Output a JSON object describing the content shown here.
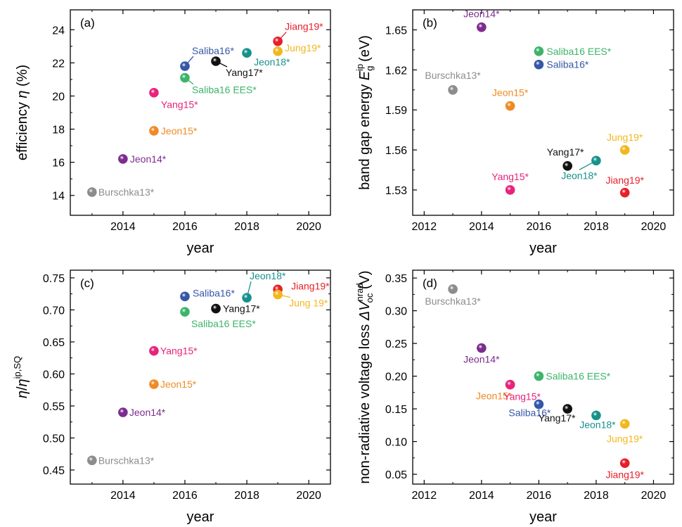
{
  "colors": {
    "Burschka13*": "#8c8c8c",
    "Jeon14*": "#7b2d8e",
    "Jeon15*": "#f08a24",
    "Yang15*": "#e8237c",
    "Saliba16*": "#3557a8",
    "Saliba16 EES*": "#3cb46a",
    "Yang17*": "#111111",
    "Jeon18*": "#17918c",
    "Jiang19*": "#e5202a",
    "Jung19*": "#f2b71e"
  },
  "chart_data": [
    {
      "id": "a",
      "type": "scatter",
      "panel_label": "(a)",
      "xlabel": "year",
      "ylabel": "efficiency η (%)",
      "xlim": [
        2012.3,
        2020.7
      ],
      "ylim": [
        12.8,
        25.2
      ],
      "xticks": [
        "2014",
        "2016",
        "2018",
        "2020"
      ],
      "yticks": [
        "14",
        "16",
        "18",
        "20",
        "22",
        "24"
      ],
      "points": [
        {
          "name": "Burschka13*",
          "x": 2013,
          "y": 14.2,
          "label": "Burschka13*"
        },
        {
          "name": "Jeon14*",
          "x": 2014,
          "y": 16.2,
          "label": "Jeon14*"
        },
        {
          "name": "Jeon15*",
          "x": 2015,
          "y": 17.9,
          "label": "Jeon15*"
        },
        {
          "name": "Yang15*",
          "x": 2015,
          "y": 20.2,
          "label": "Yang15*"
        },
        {
          "name": "Saliba16*",
          "x": 2016,
          "y": 21.8,
          "label": "Saliba16*"
        },
        {
          "name": "Saliba16 EES*",
          "x": 2016,
          "y": 21.1,
          "label": "Saliba16 EES*"
        },
        {
          "name": "Yang17*",
          "x": 2017,
          "y": 22.1,
          "label": "Yang17*"
        },
        {
          "name": "Jeon18*",
          "x": 2018,
          "y": 22.6,
          "label": "Jeon18*"
        },
        {
          "name": "Jiang19*",
          "x": 2019,
          "y": 23.3,
          "label": "Jiang19*"
        },
        {
          "name": "Jung19*",
          "x": 2019,
          "y": 22.7,
          "label": "Jung19*"
        }
      ]
    },
    {
      "id": "b",
      "type": "scatter",
      "panel_label": "(b)",
      "xlabel": "year",
      "ylabel": "band gap energy E_g^ip (eV)",
      "xlim": [
        2011.6,
        2020.7
      ],
      "ylim": [
        1.511,
        1.665
      ],
      "xticks": [
        "2012",
        "2014",
        "2016",
        "2018",
        "2020"
      ],
      "yticks": [
        "1.53",
        "1.56",
        "1.59",
        "1.62",
        "1.65"
      ],
      "points": [
        {
          "name": "Burschka13*",
          "x": 2013,
          "y": 1.605,
          "label": "Burschka13*"
        },
        {
          "name": "Jeon14*",
          "x": 2014,
          "y": 1.652,
          "label": "Jeon14*"
        },
        {
          "name": "Jeon15*",
          "x": 2015,
          "y": 1.593,
          "label": "Jeon15*"
        },
        {
          "name": "Yang15*",
          "x": 2015,
          "y": 1.53,
          "label": "Yang15*"
        },
        {
          "name": "Saliba16 EES*",
          "x": 2016,
          "y": 1.634,
          "label": "Saliba16 EES*"
        },
        {
          "name": "Saliba16*",
          "x": 2016,
          "y": 1.624,
          "label": "Saliba16*"
        },
        {
          "name": "Yang17*",
          "x": 2017,
          "y": 1.548,
          "label": "Yang17*"
        },
        {
          "name": "Jeon18*",
          "x": 2018,
          "y": 1.552,
          "label": "Jeon18*"
        },
        {
          "name": "Jiang19*",
          "x": 2019,
          "y": 1.528,
          "label": "Jiang19*"
        },
        {
          "name": "Jung19*",
          "x": 2019,
          "y": 1.56,
          "label": "Jung19*"
        }
      ]
    },
    {
      "id": "c",
      "type": "scatter",
      "panel_label": "(c)",
      "xlabel": "year",
      "ylabel": "η/η^ip,SQ",
      "xlim": [
        2012.3,
        2020.7
      ],
      "ylim": [
        0.428,
        0.762
      ],
      "xticks": [
        "2014",
        "2016",
        "2018",
        "2020"
      ],
      "yticks": [
        "0.45",
        "0.50",
        "0.55",
        "0.60",
        "0.65",
        "0.70",
        "0.75"
      ],
      "points": [
        {
          "name": "Burschka13*",
          "x": 2013,
          "y": 0.465,
          "label": "Burschka13*"
        },
        {
          "name": "Jeon14*",
          "x": 2014,
          "y": 0.54,
          "label": "Jeon14*"
        },
        {
          "name": "Jeon15*",
          "x": 2015,
          "y": 0.584,
          "label": "Jeon15*"
        },
        {
          "name": "Yang15*",
          "x": 2015,
          "y": 0.636,
          "label": "Yang15*"
        },
        {
          "name": "Saliba16*",
          "x": 2016,
          "y": 0.721,
          "label": "Saliba16*"
        },
        {
          "name": "Saliba16 EES*",
          "x": 2016,
          "y": 0.697,
          "label": "Saliba16 EES*"
        },
        {
          "name": "Yang17*",
          "x": 2017,
          "y": 0.702,
          "label": "Yang17*"
        },
        {
          "name": "Jeon18*",
          "x": 2018,
          "y": 0.719,
          "label": "Jeon18*"
        },
        {
          "name": "Jiang19*",
          "x": 2019,
          "y": 0.732,
          "label": "Jiang19*"
        },
        {
          "name": "Jung19*",
          "x": 2019,
          "y": 0.724,
          "label": "Jung 19*"
        }
      ]
    },
    {
      "id": "d",
      "type": "scatter",
      "panel_label": "(d)",
      "xlabel": "year",
      "ylabel": "non-radiative voltage loss ΔV_oc^nrad (V)",
      "xlim": [
        2011.6,
        2020.7
      ],
      "ylim": [
        0.035,
        0.362
      ],
      "xticks": [
        "2012",
        "2014",
        "2016",
        "2018",
        "2020"
      ],
      "yticks": [
        "0.05",
        "0.10",
        "0.15",
        "0.20",
        "0.25",
        "0.30",
        "0.35"
      ],
      "points": [
        {
          "name": "Burschka13*",
          "x": 2013,
          "y": 0.333,
          "label": "Burschka13*"
        },
        {
          "name": "Jeon14*",
          "x": 2014,
          "y": 0.243,
          "label": "Jeon14*"
        },
        {
          "name": "Jeon15*",
          "x": 2015,
          "y": 0.187,
          "label": "Jeon15*"
        },
        {
          "name": "Yang15*",
          "x": 2015,
          "y": 0.187,
          "label": "Yang15*"
        },
        {
          "name": "Saliba16 EES*",
          "x": 2016,
          "y": 0.2,
          "label": "Saliba16 EES*"
        },
        {
          "name": "Saliba16*",
          "x": 2016,
          "y": 0.157,
          "label": "Saliba16*"
        },
        {
          "name": "Yang17*",
          "x": 2017,
          "y": 0.15,
          "label": "Yang17*"
        },
        {
          "name": "Jeon18*",
          "x": 2018,
          "y": 0.14,
          "label": "Jeon18*"
        },
        {
          "name": "Jung19*",
          "x": 2019,
          "y": 0.127,
          "label": "Jung19*"
        },
        {
          "name": "Jiang19*",
          "x": 2019,
          "y": 0.067,
          "label": "Jiang19*"
        }
      ]
    }
  ]
}
